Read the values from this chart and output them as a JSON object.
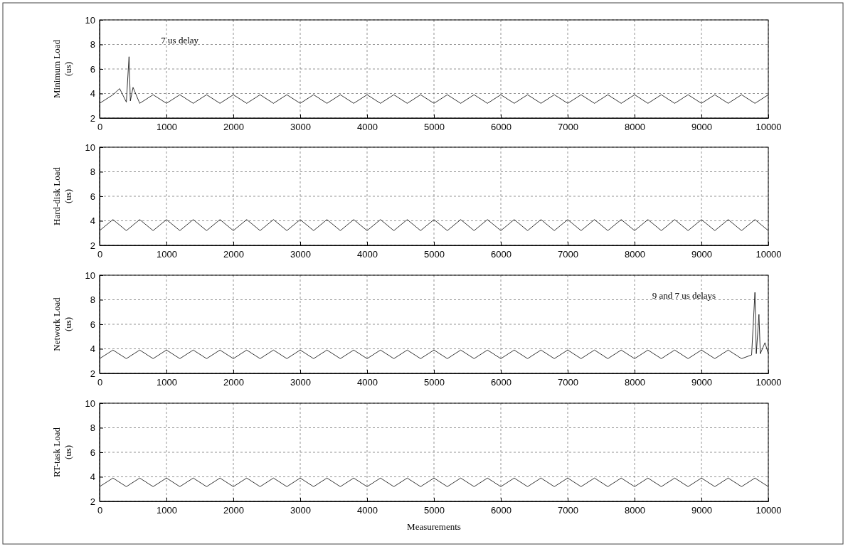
{
  "chart_data": [
    {
      "type": "line",
      "ylabel": "Minimum Load\n(us)",
      "xlim": [
        0,
        10000
      ],
      "ylim": [
        2,
        10
      ],
      "xticks": [
        0,
        1000,
        2000,
        3000,
        4000,
        5000,
        6000,
        7000,
        8000,
        9000,
        10000
      ],
      "yticks": [
        2,
        4,
        6,
        8,
        10
      ],
      "grid": true,
      "annotations": [
        "7 us delay"
      ],
      "series": [
        {
          "color": "#000000",
          "x": [
            0,
            200,
            300,
            400,
            440,
            460,
            500,
            600,
            800,
            1000,
            1200,
            1400,
            1600,
            1800,
            2000,
            2200,
            2400,
            2600,
            2800,
            3000,
            3200,
            3400,
            3600,
            3800,
            4000,
            4200,
            4400,
            4600,
            4800,
            5000,
            5200,
            5400,
            5600,
            5800,
            6000,
            6200,
            6400,
            6600,
            6800,
            7000,
            7200,
            7400,
            7600,
            7800,
            8000,
            8200,
            8400,
            8600,
            8800,
            9000,
            9200,
            9400,
            9600,
            9800,
            10000
          ],
          "values": [
            3.2,
            3.9,
            4.4,
            3.3,
            7.0,
            3.4,
            4.5,
            3.2,
            3.9,
            3.2,
            3.9,
            3.2,
            3.9,
            3.2,
            3.9,
            3.2,
            3.9,
            3.2,
            3.9,
            3.2,
            3.9,
            3.2,
            3.9,
            3.2,
            3.9,
            3.2,
            3.9,
            3.2,
            3.9,
            3.2,
            3.9,
            3.2,
            3.9,
            3.2,
            3.9,
            3.2,
            3.9,
            3.2,
            3.9,
            3.2,
            3.9,
            3.2,
            3.9,
            3.2,
            3.9,
            3.2,
            3.9,
            3.2,
            3.9,
            3.2,
            3.9,
            3.2,
            3.9,
            3.2,
            3.9
          ]
        }
      ]
    },
    {
      "type": "line",
      "ylabel": "Hard-disk Load\n(us)",
      "xlim": [
        0,
        10000
      ],
      "ylim": [
        2,
        10
      ],
      "xticks": [
        0,
        1000,
        2000,
        3000,
        4000,
        5000,
        6000,
        7000,
        8000,
        9000,
        10000
      ],
      "yticks": [
        2,
        4,
        6,
        8,
        10
      ],
      "grid": true,
      "series": [
        {
          "color": "#000000",
          "x": [
            0,
            200,
            400,
            600,
            800,
            1000,
            1200,
            1400,
            1600,
            1800,
            2000,
            2200,
            2400,
            2600,
            2800,
            3000,
            3200,
            3400,
            3600,
            3800,
            4000,
            4200,
            4400,
            4600,
            4800,
            5000,
            5200,
            5400,
            5600,
            5800,
            6000,
            6200,
            6400,
            6600,
            6800,
            7000,
            7200,
            7400,
            7600,
            7800,
            8000,
            8200,
            8400,
            8600,
            8800,
            9000,
            9200,
            9400,
            9600,
            9800,
            10000
          ],
          "values": [
            3.2,
            4.1,
            3.2,
            4.1,
            3.2,
            4.1,
            3.2,
            4.1,
            3.2,
            4.1,
            3.2,
            4.1,
            3.2,
            4.1,
            3.2,
            4.1,
            3.2,
            4.1,
            3.2,
            4.1,
            3.2,
            4.1,
            3.2,
            4.1,
            3.2,
            4.1,
            3.2,
            4.1,
            3.2,
            4.1,
            3.2,
            4.1,
            3.2,
            4.1,
            3.2,
            4.1,
            3.2,
            4.1,
            3.2,
            4.1,
            3.2,
            4.1,
            3.2,
            4.1,
            3.2,
            4.1,
            3.2,
            4.1,
            3.2,
            4.1,
            3.2
          ]
        }
      ]
    },
    {
      "type": "line",
      "ylabel": "Network Load\n(us)",
      "xlim": [
        0,
        10000
      ],
      "ylim": [
        2,
        10
      ],
      "xticks": [
        0,
        1000,
        2000,
        3000,
        4000,
        5000,
        6000,
        7000,
        8000,
        9000,
        10000
      ],
      "yticks": [
        2,
        4,
        6,
        8,
        10
      ],
      "grid": true,
      "annotations": [
        "9 and 7 us delays"
      ],
      "series": [
        {
          "color": "#000000",
          "x": [
            0,
            200,
            400,
            600,
            800,
            1000,
            1200,
            1400,
            1600,
            1800,
            2000,
            2200,
            2400,
            2600,
            2800,
            3000,
            3200,
            3400,
            3600,
            3800,
            4000,
            4200,
            4400,
            4600,
            4800,
            5000,
            5200,
            5400,
            5600,
            5800,
            6000,
            6200,
            6400,
            6600,
            6800,
            7000,
            7200,
            7400,
            7600,
            7800,
            8000,
            8200,
            8400,
            8600,
            8800,
            9000,
            9200,
            9400,
            9600,
            9750,
            9800,
            9820,
            9860,
            9880,
            9950,
            10000
          ],
          "values": [
            3.2,
            3.9,
            3.2,
            3.9,
            3.2,
            3.9,
            3.2,
            3.9,
            3.2,
            3.9,
            3.2,
            3.9,
            3.2,
            3.9,
            3.2,
            3.9,
            3.2,
            3.9,
            3.2,
            3.9,
            3.2,
            3.9,
            3.2,
            3.9,
            3.2,
            3.9,
            3.2,
            3.9,
            3.2,
            3.9,
            3.2,
            3.9,
            3.2,
            3.9,
            3.2,
            3.9,
            3.2,
            3.9,
            3.2,
            3.9,
            3.2,
            3.9,
            3.2,
            3.9,
            3.2,
            3.9,
            3.2,
            3.9,
            3.2,
            3.5,
            8.6,
            3.6,
            6.8,
            3.6,
            4.5,
            3.6
          ]
        }
      ]
    },
    {
      "type": "line",
      "ylabel": "RT-task Load\n(us)",
      "xlabel": "Measurements",
      "xlim": [
        0,
        10000
      ],
      "ylim": [
        2,
        10
      ],
      "xticks": [
        0,
        1000,
        2000,
        3000,
        4000,
        5000,
        6000,
        7000,
        8000,
        9000,
        10000
      ],
      "yticks": [
        2,
        4,
        6,
        8,
        10
      ],
      "grid": true,
      "series": [
        {
          "color": "#000000",
          "x": [
            0,
            200,
            400,
            600,
            800,
            1000,
            1200,
            1400,
            1600,
            1800,
            2000,
            2200,
            2400,
            2600,
            2800,
            3000,
            3200,
            3400,
            3600,
            3800,
            4000,
            4200,
            4400,
            4600,
            4800,
            5000,
            5200,
            5400,
            5600,
            5800,
            6000,
            6200,
            6400,
            6600,
            6800,
            7000,
            7200,
            7400,
            7600,
            7800,
            8000,
            8200,
            8400,
            8600,
            8800,
            9000,
            9200,
            9400,
            9600,
            9800,
            10000
          ],
          "values": [
            3.2,
            3.9,
            3.2,
            3.9,
            3.2,
            3.9,
            3.2,
            3.9,
            3.2,
            3.9,
            3.2,
            3.9,
            3.2,
            3.9,
            3.2,
            3.9,
            3.2,
            3.9,
            3.2,
            3.9,
            3.2,
            3.9,
            3.2,
            3.9,
            3.2,
            3.9,
            3.2,
            3.9,
            3.2,
            3.9,
            3.2,
            3.9,
            3.2,
            3.9,
            3.2,
            3.9,
            3.2,
            3.9,
            3.2,
            3.9,
            3.2,
            3.9,
            3.2,
            3.9,
            3.2,
            3.9,
            3.2,
            3.9,
            3.2,
            3.9,
            3.2
          ]
        }
      ]
    }
  ]
}
